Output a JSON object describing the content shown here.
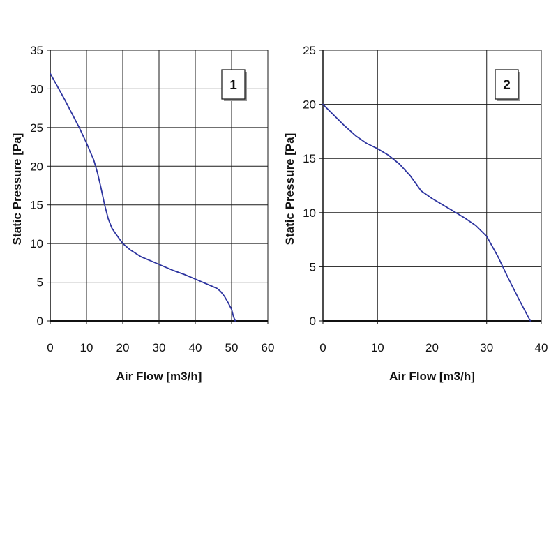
{
  "colors": {
    "series_line": "#2e35a0",
    "grid": "#1a1a1a",
    "background": "#ffffff"
  },
  "chart_data": [
    {
      "type": "line",
      "badge": "1",
      "xlabel": "Air Flow [m3/h]",
      "ylabel": "Static  Pressure  [Pa]",
      "xlim": [
        0,
        60
      ],
      "ylim": [
        0,
        35
      ],
      "xticks": [
        0,
        10,
        20,
        30,
        40,
        50,
        60
      ],
      "yticks": [
        0,
        5,
        10,
        15,
        20,
        25,
        30,
        35
      ],
      "grid": true,
      "series": [
        {
          "x": [
            0,
            2,
            4,
            6,
            8,
            10,
            12,
            13,
            14,
            15,
            16,
            17,
            18,
            20,
            22,
            25,
            28,
            31,
            34,
            37,
            40,
            42,
            44,
            46,
            47,
            48,
            49,
            50,
            50.5,
            51
          ],
          "y": [
            32,
            30.3,
            28.6,
            26.8,
            25,
            23,
            20.8,
            19.2,
            17.2,
            15,
            13.2,
            12,
            11.3,
            10,
            9.2,
            8.3,
            7.7,
            7.1,
            6.5,
            6,
            5.4,
            5,
            4.6,
            4.2,
            3.8,
            3.2,
            2.4,
            1.5,
            0.6,
            0
          ]
        }
      ]
    },
    {
      "type": "line",
      "badge": "2",
      "xlabel": "Air Flow [m3/h]",
      "ylabel": "Static  Pressure  [Pa]",
      "xlim": [
        0,
        40
      ],
      "ylim": [
        0,
        25
      ],
      "xticks": [
        0,
        10,
        20,
        30,
        40
      ],
      "yticks": [
        0,
        5,
        10,
        15,
        20,
        25
      ],
      "grid": true,
      "series": [
        {
          "x": [
            0,
            2,
            4,
            6,
            8,
            10,
            12,
            14,
            16,
            18,
            20,
            22,
            24,
            26,
            28,
            30,
            32,
            34,
            36,
            38
          ],
          "y": [
            20,
            19,
            18,
            17.1,
            16.4,
            15.9,
            15.3,
            14.5,
            13.4,
            12,
            11.3,
            10.7,
            10.1,
            9.5,
            8.8,
            7.8,
            6,
            3.9,
            1.9,
            0
          ]
        }
      ]
    }
  ]
}
